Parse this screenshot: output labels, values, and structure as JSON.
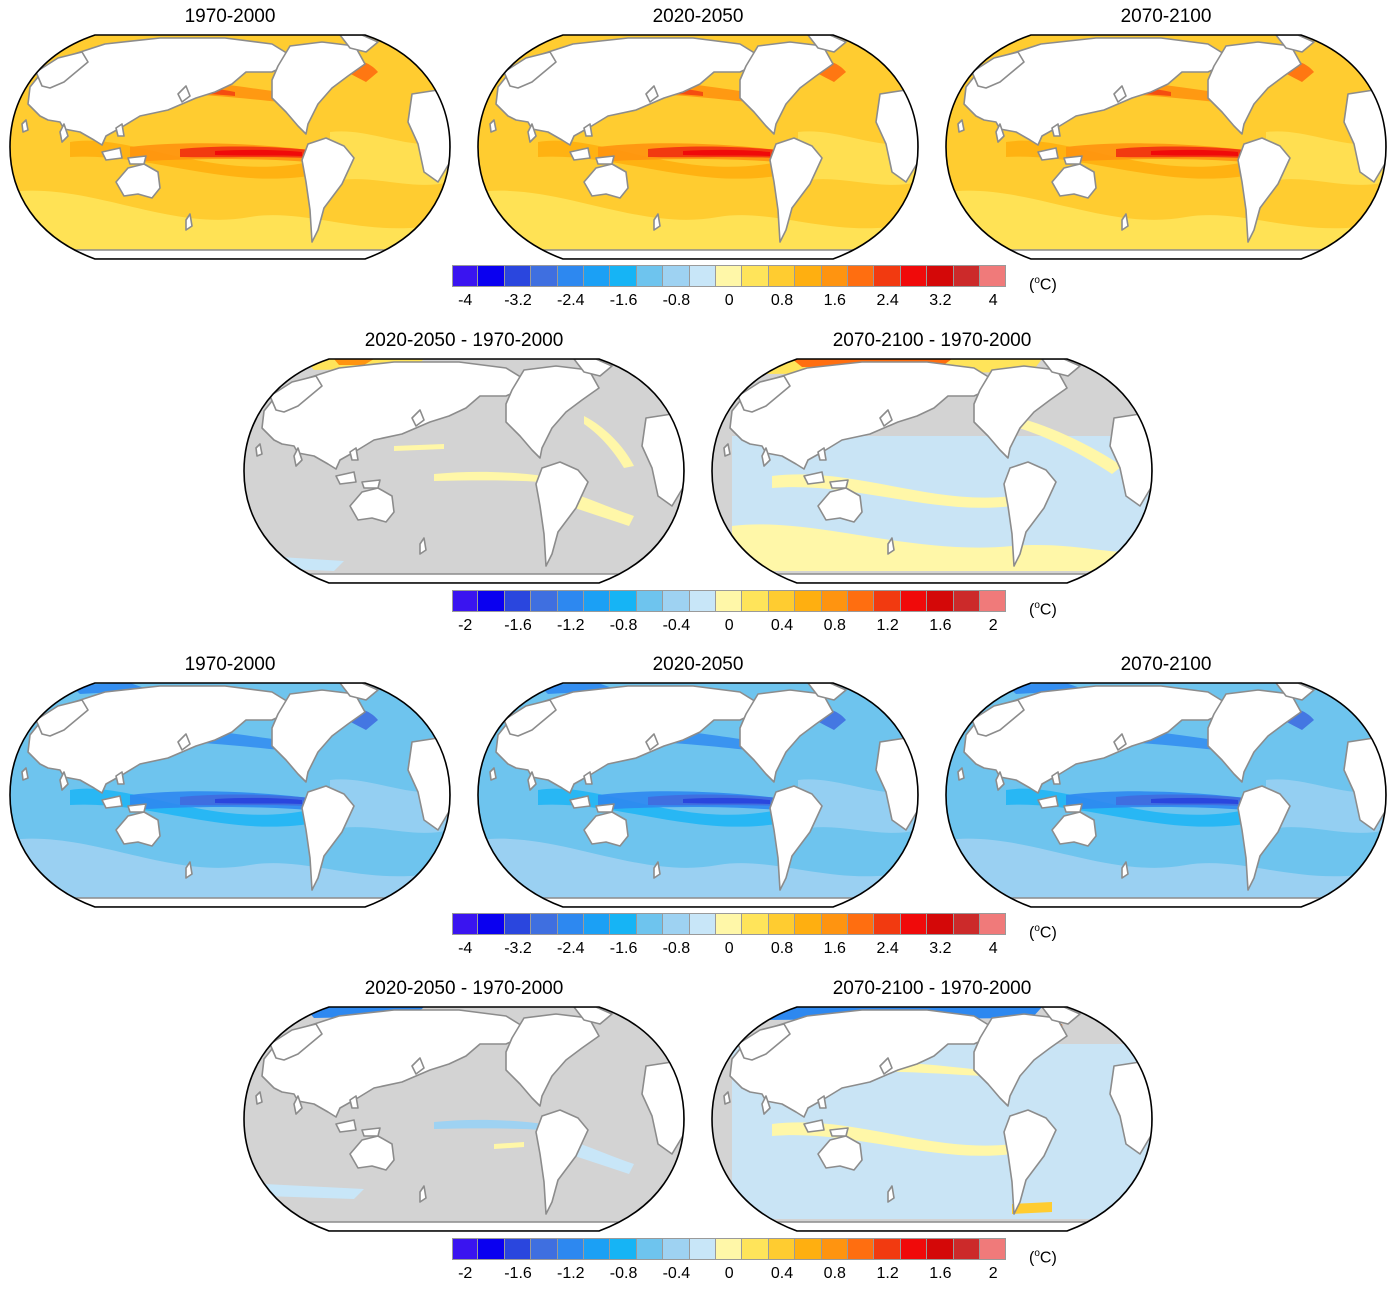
{
  "rows": [
    {
      "panels": [
        {
          "title": "1970-2000",
          "style": "warm"
        },
        {
          "title": "2020-2050",
          "style": "warm"
        },
        {
          "title": "2070-2100",
          "style": "warm"
        }
      ]
    },
    {
      "panels": [
        {
          "title": "2020-2050 - 1970-2000",
          "style": "diff"
        },
        {
          "title": "2070-2100 - 1970-2000",
          "style": "diff2"
        }
      ]
    },
    {
      "panels": [
        {
          "title": "1970-2000",
          "style": "cool"
        },
        {
          "title": "2020-2050",
          "style": "cool"
        },
        {
          "title": "2070-2100",
          "style": "cool"
        }
      ]
    },
    {
      "panels": [
        {
          "title": "2020-2050 - 1970-2000",
          "style": "diffc"
        },
        {
          "title": "2070-2100 - 1970-2000",
          "style": "diffc2"
        }
      ]
    }
  ],
  "colorbars": [
    {
      "ticks": [
        "-4",
        "-3.2",
        "-2.4",
        "-1.6",
        "-0.8",
        "0",
        "0.8",
        "1.6",
        "2.4",
        "3.2",
        "4"
      ],
      "unit_base": "(",
      "unit_sup": "o",
      "unit_tail": "C)"
    },
    {
      "ticks": [
        "-2",
        "-1.6",
        "-1.2",
        "-0.8",
        "-0.4",
        "0",
        "0.4",
        "0.8",
        "1.2",
        "1.6",
        "2"
      ],
      "unit_base": "(",
      "unit_sup": "o",
      "unit_tail": "C)"
    },
    {
      "ticks": [
        "-4",
        "-3.2",
        "-2.4",
        "-1.6",
        "-0.8",
        "0",
        "0.8",
        "1.6",
        "2.4",
        "3.2",
        "4"
      ],
      "unit_base": "(",
      "unit_sup": "o",
      "unit_tail": "C)"
    },
    {
      "ticks": [
        "-2",
        "-1.6",
        "-1.2",
        "-0.8",
        "-0.4",
        "0",
        "0.4",
        "0.8",
        "1.2",
        "1.6",
        "2"
      ],
      "unit_base": "(",
      "unit_sup": "o",
      "unit_tail": "C)"
    }
  ],
  "palette": [
    "#3a14f0",
    "#0a00f0",
    "#2a46de",
    "#3f6fe0",
    "#2d88f0",
    "#1ba0f5",
    "#16b4f5",
    "#6ec4ee",
    "#9ed2f2",
    "#c8e6f8",
    "#fff7a8",
    "#ffe45a",
    "#ffcc30",
    "#ffaf10",
    "#ff9410",
    "#ff6e10",
    "#f23a10",
    "#f00a0a",
    "#d40808",
    "#cc2a2a",
    "#f07a7a"
  ],
  "colors": {
    "land": "#ffffff",
    "coast": "#8c8c8c",
    "outline": "#000000",
    "neutral": "#d3d3d3"
  }
}
